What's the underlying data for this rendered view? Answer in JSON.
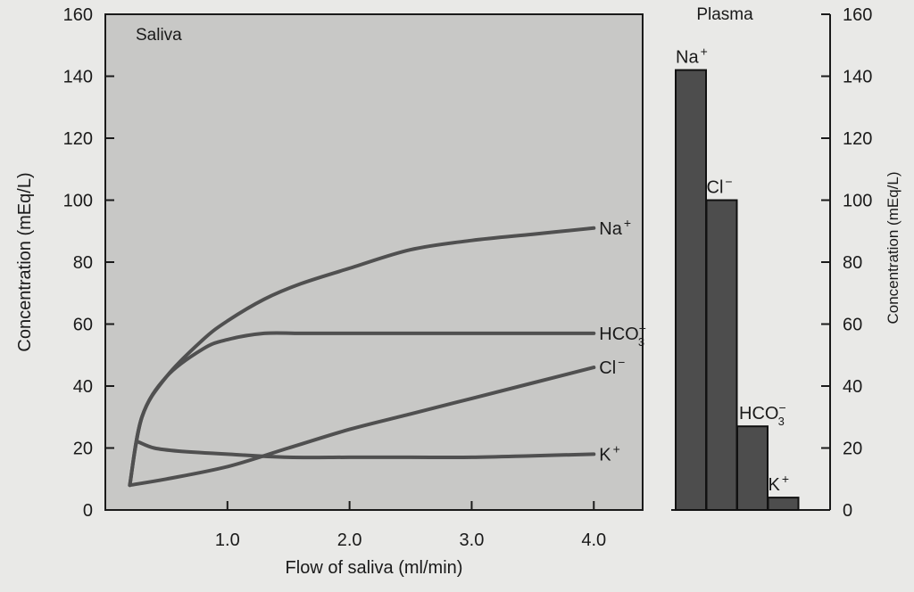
{
  "chart_data": [
    {
      "type": "line",
      "title": "Saliva",
      "xlabel": "Flow of saliva (ml/min)",
      "ylabel": "Concentration (mEq/L)",
      "xlim": [
        0,
        4.4
      ],
      "ylim": [
        0,
        160
      ],
      "xticks": [
        1.0,
        2.0,
        3.0,
        4.0
      ],
      "xtick_labels": [
        "1.0",
        "2.0",
        "3.0",
        "4.0"
      ],
      "yticks": [
        0,
        20,
        40,
        60,
        80,
        100,
        120,
        140,
        160
      ],
      "ytick_labels": [
        "0",
        "20",
        "40",
        "60",
        "80",
        "100",
        "120",
        "140",
        "160"
      ],
      "grid": false,
      "series": [
        {
          "name": "Na+",
          "x": [
            0.2,
            0.3,
            0.5,
            0.8,
            1.0,
            1.3,
            1.6,
            2.0,
            2.5,
            3.0,
            3.5,
            4.0
          ],
          "y": [
            8,
            30,
            43,
            55,
            61,
            68,
            73,
            78,
            84,
            87,
            89,
            91
          ]
        },
        {
          "name": "HCO3-",
          "x": [
            0.2,
            0.3,
            0.5,
            0.8,
            1.0,
            1.3,
            1.6,
            2.0,
            2.5,
            3.0,
            3.5,
            4.0
          ],
          "y": [
            8,
            30,
            43,
            52,
            55,
            57,
            57,
            57,
            57,
            57,
            57,
            57
          ]
        },
        {
          "name": "Cl-",
          "x": [
            0.2,
            0.5,
            1.0,
            1.5,
            2.0,
            2.5,
            3.0,
            3.5,
            4.0
          ],
          "y": [
            8,
            10,
            14,
            20,
            26,
            31,
            36,
            41,
            46
          ]
        },
        {
          "name": "K+",
          "x": [
            0.27,
            0.4,
            0.6,
            1.0,
            1.5,
            2.0,
            2.5,
            3.0,
            3.5,
            4.0
          ],
          "y": [
            22,
            20,
            19,
            18,
            17,
            17,
            17,
            17,
            17.5,
            18
          ]
        }
      ]
    },
    {
      "type": "bar",
      "title": "Plasma",
      "ylabel": "Concentration (mEq/L)",
      "ylim": [
        0,
        160
      ],
      "yticks": [
        0,
        20,
        40,
        60,
        80,
        100,
        120,
        140,
        160
      ],
      "ytick_labels": [
        "0",
        "20",
        "40",
        "60",
        "80",
        "100",
        "120",
        "140",
        "160"
      ],
      "categories": [
        "Na+",
        "Cl-",
        "HCO3-",
        "K+"
      ],
      "values": [
        142,
        100,
        27,
        4
      ],
      "color": "#4d4d4d"
    }
  ],
  "labels": {
    "line_series": [
      {
        "base": "Na",
        "sup": "+",
        "sub": ""
      },
      {
        "base": "HCO",
        "sup": "−",
        "sub": "3"
      },
      {
        "base": "Cl",
        "sup": "−",
        "sub": ""
      },
      {
        "base": "K",
        "sup": "+",
        "sub": ""
      }
    ],
    "bar_series": [
      {
        "base": "Na",
        "sup": "+",
        "sub": ""
      },
      {
        "base": "Cl",
        "sup": "−",
        "sub": ""
      },
      {
        "base": "HCO",
        "sup": "−",
        "sub": "3"
      },
      {
        "base": "K",
        "sup": "+",
        "sub": ""
      }
    ]
  },
  "colors": {
    "plot_background": "#c8c8c6",
    "line": "#505050",
    "bar_fill": "#4d4d4d",
    "page_background": "#e9e9e7"
  }
}
